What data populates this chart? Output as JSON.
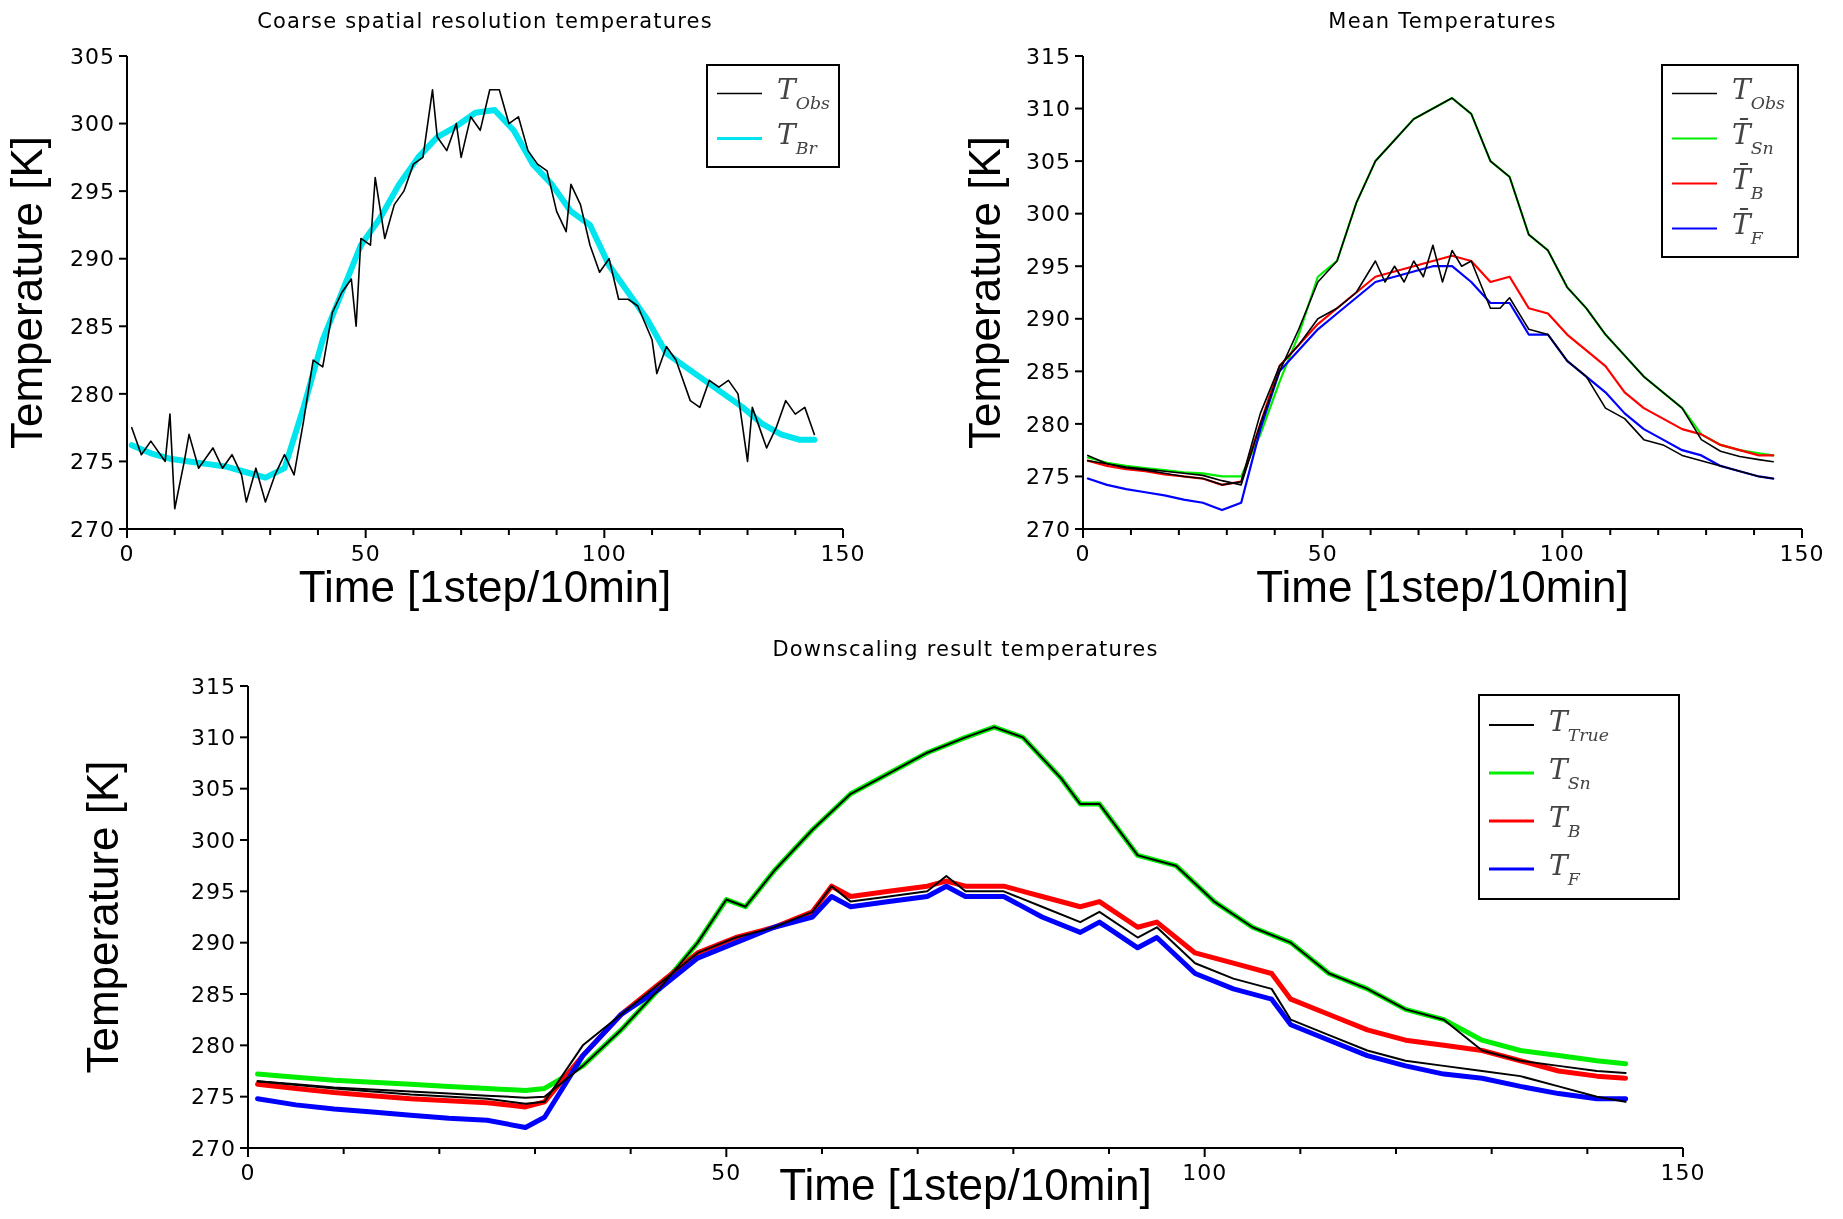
{
  "chart_data": [
    {
      "type": "line",
      "title": "Coarse spatial resolution temperatures",
      "xlabel": "Time [1step/10min]",
      "ylabel": "Temperature [K]",
      "xlim": [
        0,
        150
      ],
      "ylim": [
        270,
        305
      ],
      "xticks": [
        0,
        {
          "value": 10,
          "label": null
        },
        {
          "value": 20,
          "label": null
        },
        {
          "value": 30,
          "label": null
        },
        {
          "value": 40,
          "label": null
        },
        50,
        {
          "value": 60,
          "label": null
        },
        {
          "value": 70,
          "label": null
        },
        {
          "value": 80,
          "label": null
        },
        {
          "value": 90,
          "label": null
        },
        100,
        {
          "value": 110,
          "label": null
        },
        {
          "value": 120,
          "label": null
        },
        {
          "value": 130,
          "label": null
        },
        {
          "value": 140,
          "label": null
        },
        150
      ],
      "yticks": [
        270,
        275,
        280,
        285,
        290,
        295,
        300,
        305
      ],
      "legend": "top right",
      "series": [
        {
          "name": "T$_{Obs}$",
          "color": "#000000",
          "x": [
            1,
            3,
            5,
            8,
            9,
            10,
            12,
            13,
            15,
            18,
            20,
            22,
            24,
            25,
            27,
            29,
            31,
            33,
            35,
            37,
            39,
            41,
            43,
            45,
            47,
            48,
            49,
            51,
            52,
            54,
            56,
            58,
            60,
            62,
            64,
            65,
            67,
            69,
            70,
            72,
            74,
            76,
            78,
            80,
            82,
            84,
            86,
            88,
            90,
            92,
            93,
            95,
            97,
            99,
            101,
            103,
            105,
            107,
            110,
            111,
            113,
            115,
            118,
            120,
            122,
            124,
            126,
            128,
            130,
            131,
            134,
            136,
            138,
            140,
            142,
            144
          ],
          "values": [
            277.5,
            275.5,
            276.5,
            275,
            278.5,
            271.5,
            275,
            277,
            274.5,
            276,
            274.5,
            275.5,
            274,
            272,
            274.5,
            272,
            274,
            275.5,
            274,
            278,
            282.5,
            282,
            286,
            287.5,
            288.5,
            285,
            291.5,
            291,
            296,
            291.5,
            294,
            295,
            297,
            297.5,
            302.5,
            299,
            298,
            300,
            297.5,
            300.5,
            299.5,
            302.5,
            302.5,
            300,
            300.5,
            298,
            297,
            296.5,
            293.5,
            292,
            295.5,
            294,
            291,
            289,
            290,
            287,
            287,
            286.5,
            284,
            281.5,
            283.5,
            282.5,
            279.5,
            279,
            281,
            280.5,
            281,
            280,
            275,
            279,
            276,
            277.5,
            279.5,
            278.5,
            279,
            277
          ]
        },
        {
          "name": "T$_{Br}$",
          "color": "#00e5ee",
          "x": [
            1,
            5,
            9,
            13,
            17,
            21,
            25,
            29,
            33,
            37,
            41,
            45,
            49,
            53,
            57,
            61,
            65,
            69,
            73,
            77,
            81,
            85,
            89,
            93,
            97,
            101,
            105,
            109,
            113,
            117,
            121,
            125,
            129,
            133,
            137,
            141,
            144
          ],
          "values": [
            276.2,
            275.6,
            275.2,
            275,
            274.8,
            274.6,
            274.2,
            273.8,
            274.5,
            279,
            284,
            287.5,
            291,
            293,
            295.5,
            297.5,
            299,
            299.8,
            300.8,
            301,
            299.5,
            297,
            295.5,
            293.5,
            292.5,
            289.5,
            287.5,
            285.5,
            283,
            282,
            281,
            280,
            279,
            277.8,
            277,
            276.6,
            276.6
          ]
        }
      ]
    },
    {
      "type": "line",
      "title": "Mean Temperatures",
      "xlabel": "Time [1step/10min]",
      "ylabel": "Temperature [K]",
      "xlim": [
        0,
        150
      ],
      "ylim": [
        270,
        315
      ],
      "xticks": [
        0,
        {
          "value": 10,
          "label": null
        },
        {
          "value": 20,
          "label": null
        },
        {
          "value": 30,
          "label": null
        },
        {
          "value": 40,
          "label": null
        },
        50,
        {
          "value": 60,
          "label": null
        },
        {
          "value": 70,
          "label": null
        },
        {
          "value": 80,
          "label": null
        },
        {
          "value": 90,
          "label": null
        },
        100,
        {
          "value": 110,
          "label": null
        },
        {
          "value": 120,
          "label": null
        },
        {
          "value": 130,
          "label": null
        },
        {
          "value": 140,
          "label": null
        },
        150
      ],
      "yticks": [
        270,
        275,
        280,
        285,
        290,
        295,
        300,
        305,
        310,
        315
      ],
      "legend": "top right",
      "series": [
        {
          "name": "T$_{Obs}$",
          "color": "#000000",
          "x": [
            1,
            5,
            9,
            13,
            17,
            21,
            25,
            29,
            33,
            37,
            41,
            45,
            49,
            53,
            57,
            61,
            65,
            69,
            73,
            77,
            81,
            85,
            89,
            93,
            97,
            101,
            105,
            109,
            113,
            117,
            121,
            125,
            129,
            133,
            137,
            141,
            144
          ],
          "values": [
            276.5,
            276.2,
            275.9,
            275.7,
            275.5,
            275.3,
            275.1,
            274.6,
            274.2,
            280,
            285,
            289,
            293.5,
            295.5,
            301,
            305,
            307,
            309,
            310,
            311,
            309.5,
            305,
            303.5,
            298,
            296.5,
            293,
            291,
            288.5,
            286.5,
            284.5,
            283,
            281.5,
            278.5,
            277.4,
            276.9,
            276.6,
            276.4
          ]
        },
        {
          "name": "T̄$_{Sn}$",
          "color": "#00ee00",
          "x": [
            1,
            5,
            9,
            13,
            17,
            21,
            25,
            29,
            33,
            37,
            41,
            45,
            49,
            53,
            57,
            61,
            65,
            69,
            73,
            77,
            81,
            85,
            89,
            93,
            97,
            101,
            105,
            109,
            113,
            117,
            121,
            125,
            129,
            133,
            137,
            141,
            144
          ],
          "values": [
            276.8,
            276.3,
            276,
            275.8,
            275.6,
            275.4,
            275.3,
            275,
            275,
            279,
            284,
            288.5,
            294,
            295.5,
            301,
            305,
            307,
            309,
            310,
            311,
            309.5,
            305,
            303.5,
            298,
            296.5,
            293,
            291,
            288.5,
            286.5,
            284.5,
            283,
            281.5,
            279,
            278,
            277.5,
            277.2,
            277
          ]
        },
        {
          "name": "T̄$_{B}$",
          "color": "#ff0000",
          "x": [
            1,
            5,
            9,
            13,
            17,
            21,
            25,
            29,
            33,
            37,
            41,
            45,
            49,
            53,
            57,
            61,
            65,
            69,
            73,
            77,
            81,
            85,
            89,
            93,
            97,
            101,
            105,
            109,
            113,
            117,
            121,
            125,
            129,
            133,
            137,
            141,
            144
          ],
          "values": [
            276.5,
            276,
            275.7,
            275.5,
            275.2,
            275,
            274.8,
            274.2,
            274.5,
            280,
            285.5,
            287.5,
            289.5,
            291,
            292.5,
            294,
            294.5,
            295,
            295.5,
            296,
            295.5,
            293.5,
            294,
            291,
            290.5,
            288.5,
            287,
            285.5,
            283,
            281.5,
            280.5,
            279.5,
            279,
            278,
            277.5,
            277,
            277
          ]
        },
        {
          "name": "T̄$_{F}$",
          "color": "#0000ff",
          "x": [
            1,
            5,
            9,
            13,
            17,
            21,
            25,
            29,
            33,
            37,
            41,
            45,
            49,
            53,
            57,
            61,
            65,
            69,
            73,
            77,
            81,
            85,
            89,
            93,
            97,
            101,
            105,
            109,
            113,
            117,
            121,
            125,
            129,
            133,
            137,
            141,
            144
          ],
          "values": [
            274.8,
            274.2,
            273.8,
            273.5,
            273.2,
            272.8,
            272.5,
            271.8,
            272.5,
            279.5,
            285,
            287,
            289,
            290.5,
            292,
            293.5,
            294,
            294.5,
            295,
            295,
            293.5,
            291.5,
            291.5,
            288.5,
            288.5,
            286,
            284.5,
            283,
            281,
            279.5,
            278.5,
            277.5,
            277,
            276,
            275.5,
            275,
            274.8
          ]
        },
        {
          "color": "#000000",
          "x": [
            1,
            5,
            9,
            13,
            17,
            21,
            25,
            29,
            33,
            37,
            41,
            45,
            49,
            53,
            57,
            61,
            63,
            65,
            67,
            69,
            71,
            73,
            75,
            77,
            79,
            81,
            85,
            87,
            89,
            93,
            97,
            101,
            105,
            109,
            113,
            117,
            121,
            125,
            129,
            133,
            137,
            141,
            144
          ],
          "values": [
            277,
            276.2,
            275.8,
            275.6,
            275.3,
            275,
            274.8,
            274.2,
            274.5,
            281,
            285.5,
            287.5,
            290,
            291,
            292.5,
            295.5,
            293.5,
            295,
            293.5,
            295.5,
            294,
            297,
            293.5,
            296.5,
            295,
            295.5,
            291,
            291,
            292,
            289,
            288.5,
            286,
            284.5,
            281.5,
            280.5,
            278.5,
            278,
            277,
            276.5,
            276,
            275.5,
            275,
            274.8
          ]
        }
      ]
    },
    {
      "type": "line",
      "title": "Downscaling result temperatures",
      "xlabel": "Time [1step/10min]",
      "ylabel": "Temperature [K]",
      "xlim": [
        0,
        150
      ],
      "ylim": [
        270,
        315
      ],
      "xticks": [
        0,
        {
          "value": 10,
          "label": null
        },
        {
          "value": 20,
          "label": null
        },
        {
          "value": 30,
          "label": null
        },
        {
          "value": 40,
          "label": null
        },
        50,
        {
          "value": 60,
          "label": null
        },
        {
          "value": 70,
          "label": null
        },
        {
          "value": 80,
          "label": null
        },
        {
          "value": 90,
          "label": null
        },
        100,
        {
          "value": 110,
          "label": null
        },
        {
          "value": 120,
          "label": null
        },
        {
          "value": 130,
          "label": null
        },
        {
          "value": 140,
          "label": null
        },
        150
      ],
      "yticks": [
        270,
        275,
        280,
        285,
        290,
        295,
        300,
        305,
        310,
        315
      ],
      "legend": "top right",
      "series": [
        {
          "name": "T$_{True}$",
          "color": "#000000",
          "x": [
            1,
            5,
            9,
            13,
            17,
            21,
            25,
            29,
            31,
            35,
            39,
            43,
            47,
            50,
            52,
            55,
            59,
            63,
            67,
            71,
            75,
            78,
            81,
            85,
            87,
            89,
            93,
            97,
            101,
            105,
            109,
            113,
            117,
            121,
            125,
            129,
            133,
            137,
            141,
            144
          ],
          "values": [
            276.5,
            276.2,
            275.9,
            275.7,
            275.5,
            275.3,
            275.1,
            274.9,
            275,
            278,
            281.5,
            285.5,
            290,
            294.2,
            293.5,
            297,
            301,
            304.5,
            306.5,
            308.5,
            310,
            311,
            310,
            306,
            303.5,
            303.5,
            298.5,
            297.5,
            294,
            291.5,
            290,
            287,
            285.5,
            283.5,
            282.5,
            279.5,
            278.5,
            278,
            277.5,
            277.3
          ]
        },
        {
          "name": "T$_{Sn}$",
          "color": "#00ee00",
          "x": [
            1,
            5,
            9,
            13,
            17,
            21,
            25,
            29,
            31,
            35,
            39,
            43,
            47,
            50,
            52,
            55,
            59,
            63,
            67,
            71,
            75,
            78,
            81,
            85,
            87,
            89,
            93,
            97,
            101,
            105,
            109,
            113,
            117,
            121,
            125,
            129,
            133,
            137,
            141,
            144
          ],
          "values": [
            277.2,
            276.9,
            276.6,
            276.4,
            276.2,
            276,
            275.8,
            275.6,
            275.8,
            278,
            281.5,
            285.5,
            290,
            294.2,
            293.5,
            297,
            301,
            304.5,
            306.5,
            308.5,
            310,
            311,
            310,
            306,
            303.5,
            303.5,
            298.5,
            297.5,
            294,
            291.5,
            290,
            287,
            285.5,
            283.5,
            282.5,
            280.5,
            279.5,
            279,
            278.5,
            278.2
          ]
        },
        {
          "name": "T$_{B}$",
          "color": "#ff0000",
          "x": [
            1,
            5,
            9,
            13,
            17,
            21,
            25,
            29,
            31,
            35,
            39,
            43,
            47,
            51,
            55,
            59,
            61,
            63,
            67,
            71,
            73,
            75,
            79,
            83,
            87,
            89,
            93,
            95,
            99,
            103,
            107,
            109,
            113,
            117,
            121,
            125,
            129,
            133,
            137,
            141,
            144
          ],
          "values": [
            276.2,
            275.8,
            275.4,
            275.1,
            274.8,
            274.6,
            274.4,
            274,
            274.5,
            279,
            283,
            286,
            289,
            290.5,
            291.5,
            293,
            295.5,
            294.5,
            295,
            295.5,
            296,
            295.5,
            295.5,
            294.5,
            293.5,
            294,
            291.5,
            292,
            289,
            288,
            287,
            284.5,
            283,
            281.5,
            280.5,
            280,
            279.5,
            278.5,
            277.5,
            277,
            276.8
          ]
        },
        {
          "name": "T$_{F}$",
          "color": "#0000ff",
          "x": [
            1,
            5,
            9,
            13,
            17,
            21,
            25,
            29,
            31,
            35,
            39,
            43,
            47,
            51,
            55,
            59,
            61,
            63,
            67,
            71,
            73,
            75,
            79,
            83,
            87,
            89,
            93,
            95,
            99,
            103,
            107,
            109,
            113,
            117,
            121,
            125,
            129,
            133,
            137,
            141,
            144
          ],
          "values": [
            274.8,
            274.2,
            273.8,
            273.5,
            273.2,
            272.9,
            272.7,
            272,
            273,
            279,
            283,
            285.5,
            288.5,
            290,
            291.5,
            292.5,
            294.5,
            293.5,
            294,
            294.5,
            295.5,
            294.5,
            294.5,
            292.5,
            291,
            292,
            289.5,
            290.5,
            287,
            285.5,
            284.5,
            282,
            280.5,
            279,
            278,
            277.2,
            276.8,
            276,
            275.3,
            274.8,
            274.8
          ]
        },
        {
          "color": "#000000",
          "x": [
            1,
            9,
            17,
            25,
            29,
            31,
            35,
            39,
            43,
            47,
            51,
            55,
            59,
            61,
            63,
            67,
            71,
            73,
            75,
            79,
            83,
            87,
            89,
            93,
            95,
            99,
            103,
            107,
            109,
            113,
            117,
            121,
            125,
            129,
            133,
            137,
            141,
            144
          ],
          "values": [
            276.5,
            275.8,
            275.2,
            274.8,
            274.3,
            274.5,
            280,
            283,
            286,
            289,
            290.5,
            291.5,
            293,
            295.5,
            294,
            294.5,
            295,
            296.5,
            295,
            295,
            293.5,
            292,
            293,
            290.5,
            291.5,
            288,
            286.5,
            285.5,
            282.5,
            281,
            279.5,
            278.5,
            278,
            277.5,
            277,
            276,
            275,
            274.5
          ]
        }
      ]
    }
  ]
}
